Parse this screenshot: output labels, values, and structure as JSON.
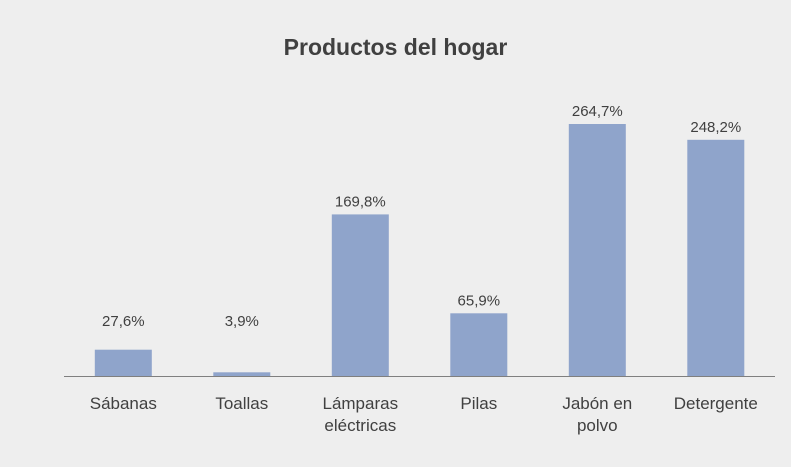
{
  "chart_data": {
    "type": "bar",
    "title": "Productos del hogar",
    "xlabel": "",
    "ylabel": "",
    "categories": [
      [
        "Sábanas"
      ],
      [
        "Toallas"
      ],
      [
        "Lámparas",
        "eléctricas"
      ],
      [
        "Pilas"
      ],
      [
        "Jabón en",
        "polvo"
      ],
      [
        "Detergente"
      ]
    ],
    "values": [
      27.6,
      3.9,
      169.8,
      65.9,
      264.7,
      248.2
    ],
    "value_labels": [
      "27,6%",
      "3,9%",
      "169,8%",
      "65,9%",
      "264,7%",
      "248,2%"
    ],
    "ylim": [
      0,
      270
    ],
    "grid": false,
    "legend": "none",
    "colors": {
      "bar": "#8fa4cb",
      "axis": "#7f7f7f",
      "text": "#404040",
      "background": "#eeeeee"
    }
  }
}
